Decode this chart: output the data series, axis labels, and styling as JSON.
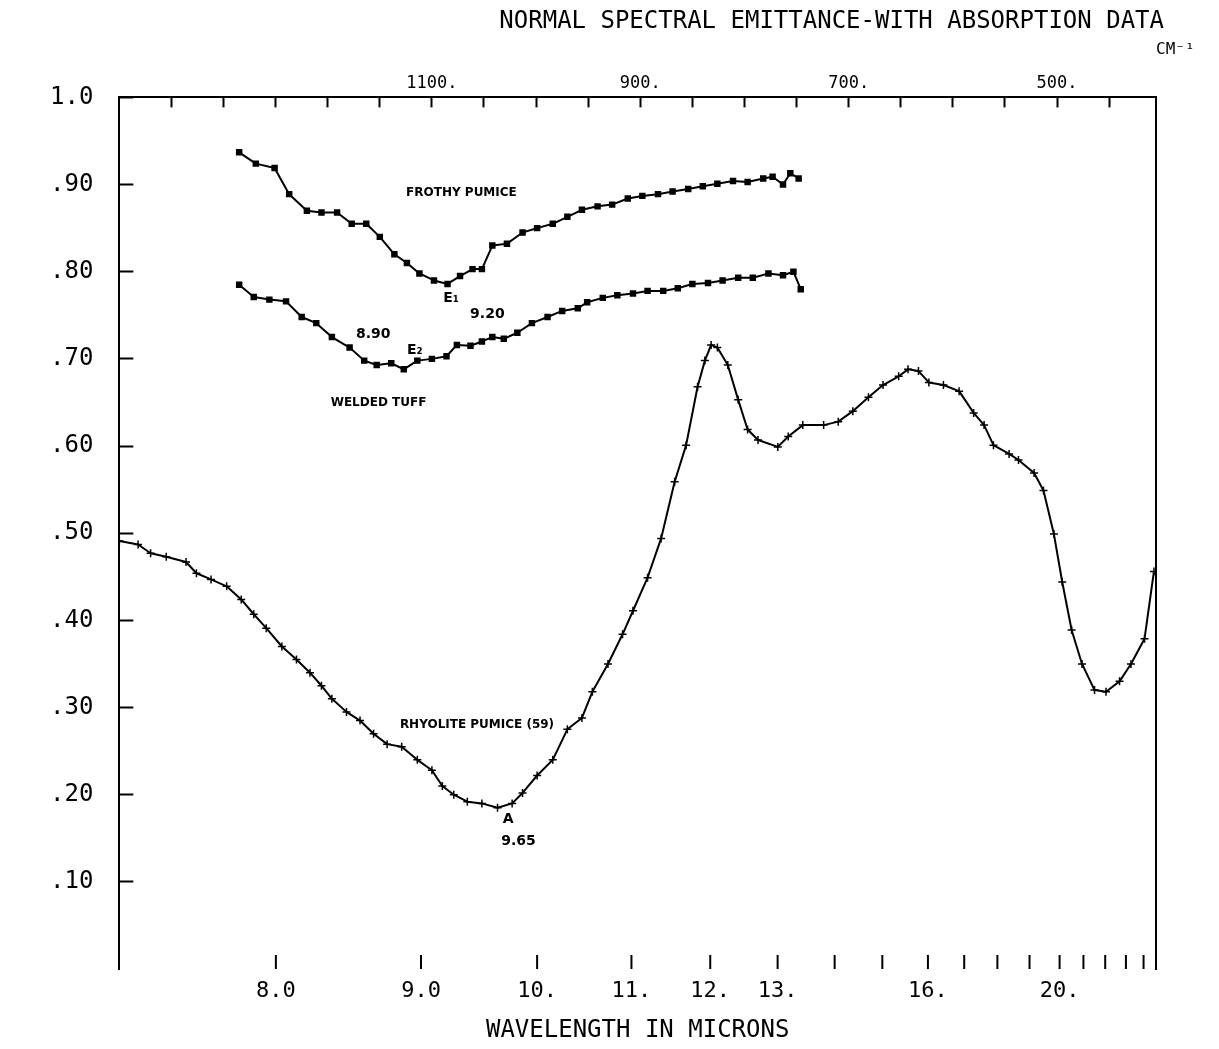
{
  "chart_data": {
    "type": "line",
    "title": "NORMAL SPECTRAL EMITTANCE-WITH ABSORPTION DATA",
    "xlabel": "CM⁻¹",
    "ylim": [
      0,
      1
    ],
    "xlim": [
      1400,
      405
    ],
    "xticks": [
      {
        "value": 1350,
        "label": null
      },
      {
        "value": 1300,
        "label": null
      },
      {
        "value": 1250,
        "label": null
      },
      {
        "value": 1200,
        "label": null
      },
      {
        "value": 1150,
        "label": null
      },
      {
        "value": 1100,
        "label": "1100."
      },
      {
        "value": 1050,
        "label": null
      },
      {
        "value": 1000,
        "label": null
      },
      {
        "value": 950,
        "label": null
      },
      {
        "value": 900,
        "label": "900."
      },
      {
        "value": 850,
        "label": null
      },
      {
        "value": 800,
        "label": null
      },
      {
        "value": 750,
        "label": null
      },
      {
        "value": 700,
        "label": "700."
      },
      {
        "value": 650,
        "label": null
      },
      {
        "value": 600,
        "label": null
      },
      {
        "value": 550,
        "label": null
      },
      {
        "value": 500,
        "label": "500."
      },
      {
        "value": 450,
        "label": null
      }
    ],
    "yticks": [
      {
        "value": 0.1,
        "label": ".10"
      },
      {
        "value": 0.2,
        "label": ".20"
      },
      {
        "value": 0.3,
        "label": ".30"
      },
      {
        "value": 0.4,
        "label": ".40"
      },
      {
        "value": 0.5,
        "label": ".50"
      },
      {
        "value": 0.6,
        "label": ".60"
      },
      {
        "value": 0.7,
        "label": ".70"
      },
      {
        "value": 0.8,
        "label": ".80"
      },
      {
        "value": 0.9,
        "label": ".90"
      },
      {
        "value": 1.0,
        "label": "1.0"
      }
    ],
    "grid": false,
    "legend": false,
    "line_style": "solid",
    "series": [
      {
        "name": "FROTHY PUMICE",
        "color": "#000000",
        "marker": "square",
        "x": [
          1285,
          1269,
          1251,
          1237,
          1220,
          1206,
          1191,
          1177,
          1163,
          1150,
          1136,
          1124,
          1112,
          1098,
          1085,
          1073,
          1061,
          1052,
          1042,
          1028,
          1013,
          999,
          984,
          970,
          956,
          941,
          927,
          912,
          898,
          883,
          869,
          854,
          840,
          826,
          811,
          797,
          782,
          773,
          763,
          756,
          748
        ],
        "values": [
          0.937,
          0.924,
          0.919,
          0.889,
          0.87,
          0.868,
          0.868,
          0.855,
          0.855,
          0.84,
          0.82,
          0.81,
          0.798,
          0.79,
          0.786,
          0.795,
          0.803,
          0.803,
          0.83,
          0.832,
          0.845,
          0.85,
          0.855,
          0.863,
          0.871,
          0.875,
          0.877,
          0.884,
          0.887,
          0.889,
          0.892,
          0.895,
          0.898,
          0.901,
          0.904,
          0.903,
          0.907,
          0.909,
          0.9,
          0.913,
          0.907
        ]
      },
      {
        "name": "WELDED TUFF",
        "color": "#000000",
        "marker": "square",
        "x": [
          1285,
          1271,
          1256,
          1240,
          1225,
          1211,
          1196,
          1179,
          1165,
          1153,
          1139,
          1127,
          1114,
          1100,
          1086,
          1076,
          1063,
          1052,
          1042,
          1031,
          1018,
          1004,
          989,
          975,
          960,
          951,
          936,
          922,
          907,
          893,
          878,
          864,
          850,
          835,
          821,
          806,
          792,
          777,
          763,
          753,
          746
        ],
        "values": [
          0.785,
          0.771,
          0.768,
          0.766,
          0.748,
          0.741,
          0.725,
          0.713,
          0.698,
          0.693,
          0.695,
          0.688,
          0.698,
          0.7,
          0.703,
          0.716,
          0.715,
          0.72,
          0.725,
          0.723,
          0.73,
          0.741,
          0.748,
          0.755,
          0.758,
          0.765,
          0.77,
          0.773,
          0.775,
          0.778,
          0.778,
          0.781,
          0.786,
          0.787,
          0.79,
          0.793,
          0.793,
          0.798,
          0.796,
          0.8,
          0.78
        ]
      },
      {
        "name": "RHYOLITE PUMICE (59)",
        "color": "#000000",
        "marker": "cross",
        "x": [
          1400,
          1382,
          1370,
          1355,
          1336,
          1326,
          1312,
          1297,
          1283,
          1271,
          1259,
          1244,
          1230,
          1217,
          1206,
          1196,
          1182,
          1169,
          1156,
          1143,
          1129,
          1114,
          1100,
          1090,
          1079,
          1066,
          1052,
          1037,
          1023,
          1013,
          999,
          984,
          970,
          956,
          946,
          931,
          917,
          907,
          893,
          880,
          867,
          856,
          845,
          838,
          832,
          826,
          816,
          806,
          797,
          787,
          768,
          758,
          744,
          724,
          710,
          696,
          681,
          667,
          652,
          643,
          633,
          623,
          609,
          594,
          580,
          570,
          561,
          546,
          537,
          522,
          513,
          503,
          495,
          486,
          476,
          464,
          453,
          440,
          429,
          416,
          407
        ],
        "values": [
          0.491,
          0.487,
          0.477,
          0.473,
          0.467,
          0.454,
          0.447,
          0.439,
          0.424,
          0.407,
          0.391,
          0.37,
          0.355,
          0.34,
          0.325,
          0.31,
          0.295,
          0.285,
          0.27,
          0.258,
          0.255,
          0.24,
          0.228,
          0.21,
          0.2,
          0.192,
          0.19,
          0.185,
          0.19,
          0.202,
          0.222,
          0.24,
          0.275,
          0.288,
          0.318,
          0.35,
          0.384,
          0.411,
          0.449,
          0.494,
          0.559,
          0.601,
          0.668,
          0.698,
          0.716,
          0.713,
          0.693,
          0.653,
          0.619,
          0.607,
          0.599,
          0.611,
          0.624,
          0.624,
          0.628,
          0.64,
          0.656,
          0.67,
          0.68,
          0.688,
          0.686,
          0.673,
          0.67,
          0.663,
          0.638,
          0.624,
          0.601,
          0.591,
          0.584,
          0.569,
          0.549,
          0.499,
          0.444,
          0.389,
          0.35,
          0.32,
          0.318,
          0.33,
          0.35,
          0.379,
          0.456
        ]
      }
    ],
    "annotations": [
      "E₁",
      "9.20",
      "8.90",
      "E₂",
      "A",
      "9.65",
      "WAVELENGTH IN MICRONS",
      "8.0",
      "9.0",
      "10.",
      "11.",
      "12.",
      "13.",
      "16.",
      "20."
    ]
  }
}
